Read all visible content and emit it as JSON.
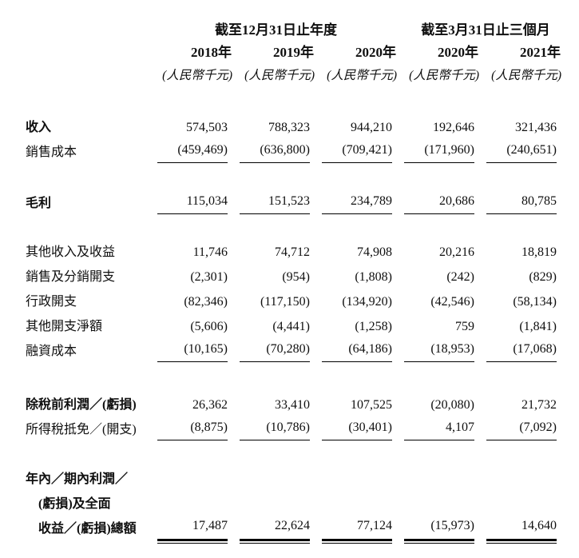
{
  "page": {
    "background": "#ffffff",
    "text_color": "#0f0f0f",
    "rule_color": "#000000"
  },
  "table": {
    "column_groups": [
      {
        "label": "截至12月31日止年度",
        "span": 3
      },
      {
        "label": "截至3月31日止三個月",
        "span": 2
      }
    ],
    "year_headers": [
      "2018年",
      "2019年",
      "2020年",
      "2020年",
      "2021年"
    ],
    "unit_headers": [
      "(人民幣千元)",
      "(人民幣千元)",
      "(人民幣千元)",
      "(人民幣千元)",
      "(人民幣千元)"
    ],
    "rows": [
      {
        "label_lines": [
          "收入"
        ],
        "bold": true,
        "values": [
          "574,503",
          "788,323",
          "944,210",
          "192,646",
          "321,436"
        ],
        "underline": "none",
        "gap_before": 36
      },
      {
        "label_lines": [
          "銷售成本"
        ],
        "bold": false,
        "values": [
          "(459,469)",
          "(636,800)",
          "(709,421)",
          "(171,960)",
          "(240,651)"
        ],
        "underline": "single",
        "gap_before": 0
      },
      {
        "label_lines": [
          "毛利"
        ],
        "bold": true,
        "values": [
          "115,034",
          "151,523",
          "234,789",
          "20,686",
          "80,785"
        ],
        "underline": "single",
        "gap_before": 33
      },
      {
        "label_lines": [
          "其他收入及收益"
        ],
        "bold": false,
        "values": [
          "11,746",
          "74,712",
          "74,908",
          "20,216",
          "18,819"
        ],
        "underline": "none",
        "gap_before": 30
      },
      {
        "label_lines": [
          "銷售及分銷開支"
        ],
        "bold": false,
        "values": [
          "(2,301)",
          "(954)",
          "(1,808)",
          "(242)",
          "(829)"
        ],
        "underline": "none",
        "gap_before": 0
      },
      {
        "label_lines": [
          "行政開支"
        ],
        "bold": false,
        "values": [
          "(82,346)",
          "(117,150)",
          "(134,920)",
          "(42,546)",
          "(58,134)"
        ],
        "underline": "none",
        "gap_before": 0
      },
      {
        "label_lines": [
          "其他開支淨額"
        ],
        "bold": false,
        "values": [
          "(5,606)",
          "(4,441)",
          "(1,258)",
          "759",
          "(1,841)"
        ],
        "underline": "none",
        "gap_before": 0
      },
      {
        "label_lines": [
          "融資成本"
        ],
        "bold": false,
        "values": [
          "(10,165)",
          "(70,280)",
          "(64,186)",
          "(18,953)",
          "(17,068)"
        ],
        "underline": "single",
        "gap_before": 0
      },
      {
        "label_lines": [
          "除稅前利潤／(虧損)"
        ],
        "bold": true,
        "values": [
          "26,362",
          "33,410",
          "107,525",
          "(20,080)",
          "21,732"
        ],
        "underline": "none",
        "gap_before": 36
      },
      {
        "label_lines": [
          "所得稅抵免／(開支)"
        ],
        "bold": false,
        "values": [
          "(8,875)",
          "(10,786)",
          "(30,401)",
          "4,107",
          "(7,092)"
        ],
        "underline": "single",
        "gap_before": 0
      },
      {
        "label_lines": [
          "年內／期內利潤／",
          "(虧損)及全面",
          "收益／(虧損)總額"
        ],
        "bold": true,
        "values": [
          "17,487",
          "22,624",
          "77,124",
          "(15,973)",
          "14,640"
        ],
        "underline": "double",
        "gap_before": 31
      }
    ]
  }
}
